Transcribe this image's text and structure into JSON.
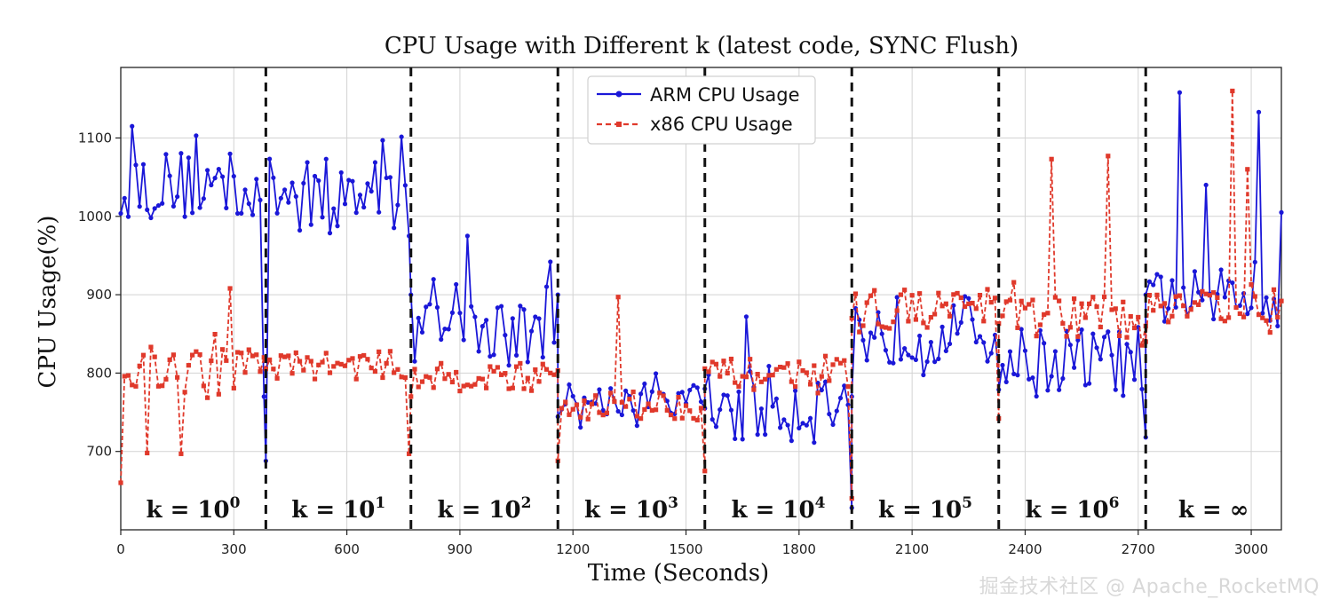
{
  "chart_data": {
    "type": "line",
    "title": "CPU Usage with Different k (latest code, SYNC Flush)",
    "xlabel": "Time (Seconds)",
    "ylabel": "CPU Usage(%)",
    "xlim": [
      0,
      3080
    ],
    "ylim": [
      600,
      1190
    ],
    "xticks": [
      0,
      300,
      600,
      900,
      1200,
      1500,
      1800,
      2100,
      2400,
      2700,
      3000
    ],
    "yticks": [
      700,
      800,
      900,
      1000,
      1100
    ],
    "grid": true,
    "legend_position": "top-center",
    "boundaries": [
      385,
      770,
      1160,
      1550,
      1940,
      2330,
      2720
    ],
    "regions": [
      {
        "base": "k = 10",
        "exp": "0",
        "x_center": 192
      },
      {
        "base": "k = 10",
        "exp": "1",
        "x_center": 578
      },
      {
        "base": "k = 10",
        "exp": "2",
        "x_center": 965
      },
      {
        "base": "k = 10",
        "exp": "3",
        "x_center": 1355
      },
      {
        "base": "k = 10",
        "exp": "4",
        "x_center": 1745
      },
      {
        "base": "k = 10",
        "exp": "5",
        "x_center": 2135
      },
      {
        "base": "k = 10",
        "exp": "6",
        "x_center": 2525
      },
      {
        "base": "k = ∞",
        "exp": "",
        "x_center": 2900
      }
    ],
    "sample_step": 10,
    "series": [
      {
        "name": "ARM CPU Usage",
        "color": "#1a17d8",
        "style": "solid",
        "marker": "circle",
        "segments": [
          {
            "x_start": 0,
            "x_end": 385,
            "mean": 1040,
            "amp": 45,
            "end_value": 770
          },
          {
            "x_start": 385,
            "x_end": 770,
            "mean": 1030,
            "amp": 45,
            "start_value": 688,
            "end_value": 975
          },
          {
            "x_start": 770,
            "x_end": 1160,
            "mean": 850,
            "amp": 45,
            "start_value": 900,
            "end_value": 900
          },
          {
            "x_start": 1160,
            "x_end": 1550,
            "mean": 765,
            "amp": 22,
            "end_value": 755
          },
          {
            "x_start": 1550,
            "x_end": 1940,
            "mean": 760,
            "amp": 50,
            "start_value": 780,
            "end_value": 628
          },
          {
            "x_start": 1940,
            "x_end": 2330,
            "mean": 855,
            "amp": 45,
            "start_value": 770,
            "end_value": 800
          },
          {
            "x_start": 2330,
            "x_end": 2720,
            "mean": 815,
            "amp": 45,
            "end_value": 718
          },
          {
            "x_start": 2720,
            "x_end": 3080,
            "mean": 895,
            "amp": 38,
            "start_value": 900
          }
        ],
        "spikes": [
          [
            30,
            1115
          ],
          [
            200,
            1103
          ],
          [
            700,
            1097
          ],
          [
            1140,
            942
          ],
          [
            920,
            975
          ],
          [
            1660,
            872
          ],
          [
            2815,
            1158
          ],
          [
            3025,
            1133
          ],
          [
            2880,
            1040
          ],
          [
            3085,
            1005
          ]
        ]
      },
      {
        "name": "x86 CPU Usage",
        "color": "#e0392b",
        "style": "dashed",
        "marker": "square",
        "segments": [
          {
            "x_start": 0,
            "x_end": 385,
            "mean": 805,
            "amp": 30,
            "start_value": 660,
            "end_value": 820
          },
          {
            "x_start": 385,
            "x_end": 770,
            "mean": 810,
            "amp": 18,
            "end_value": 697
          },
          {
            "x_start": 770,
            "x_end": 1160,
            "mean": 795,
            "amp": 18,
            "start_value": 770
          },
          {
            "x_start": 1160,
            "x_end": 1550,
            "mean": 760,
            "amp": 20,
            "start_value": 688,
            "end_value": 675
          },
          {
            "x_start": 1550,
            "x_end": 1940,
            "mean": 800,
            "amp": 18,
            "end_value": 640
          },
          {
            "x_start": 1940,
            "x_end": 2330,
            "mean": 882,
            "amp": 25,
            "start_value": 870,
            "end_value": 742
          },
          {
            "x_start": 2330,
            "x_end": 2720,
            "mean": 872,
            "amp": 28
          },
          {
            "x_start": 2720,
            "x_end": 3080,
            "mean": 888,
            "amp": 25,
            "start_value": 840
          }
        ],
        "spikes": [
          [
            70,
            698
          ],
          [
            160,
            697
          ],
          [
            290,
            908
          ],
          [
            1320,
            897
          ],
          [
            2470,
            1073
          ],
          [
            2620,
            1077
          ],
          [
            2950,
            1160
          ],
          [
            2990,
            1060
          ]
        ]
      }
    ]
  },
  "watermark": "掘金技术社区 @ Apache_RocketMQ"
}
